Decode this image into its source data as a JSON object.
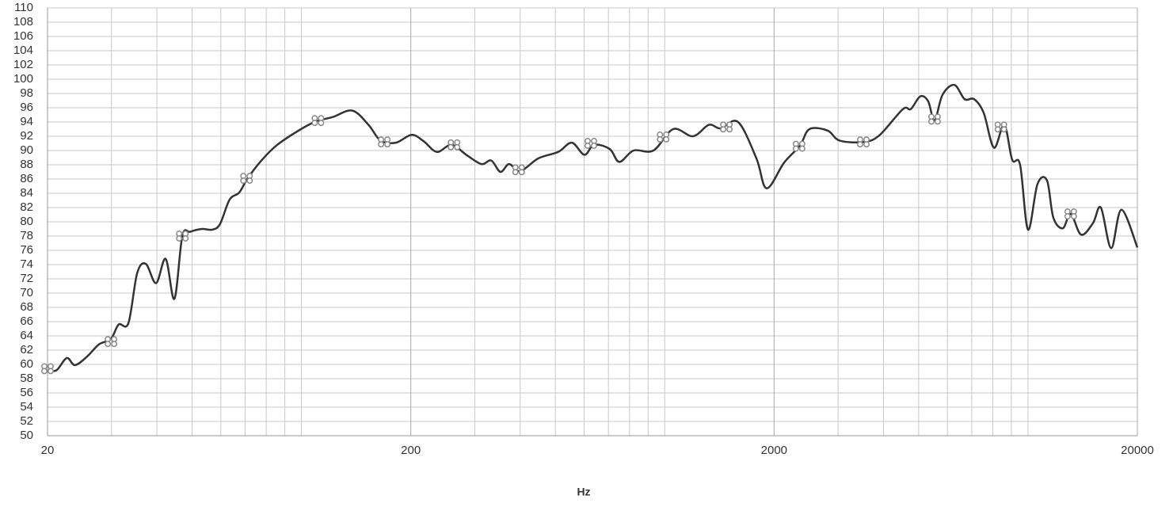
{
  "chart_data": {
    "type": "line",
    "x_label": "Hz",
    "x_scale": "log",
    "grid": true,
    "xlim": [
      20,
      20000
    ],
    "ylim": [
      50,
      110
    ],
    "xticks": [
      20,
      200,
      2000,
      20000
    ],
    "x_minor_ticks": [
      30,
      40,
      50,
      60,
      70,
      80,
      90,
      100,
      300,
      400,
      500,
      600,
      700,
      800,
      900,
      1000,
      3000,
      4000,
      5000,
      6000,
      7000,
      8000,
      9000,
      10000
    ],
    "yticks": [
      50,
      52,
      54,
      56,
      58,
      60,
      62,
      64,
      66,
      68,
      70,
      72,
      74,
      76,
      78,
      80,
      82,
      84,
      86,
      88,
      90,
      92,
      94,
      96,
      98,
      100,
      102,
      104,
      106,
      108,
      110
    ],
    "series": [
      {
        "color": "#333333",
        "x": [
          20,
          21.2,
          22.6,
          23.8,
          25.7,
          27.7,
          29.9,
          31.4,
          33.4,
          35.3,
          37.3,
          39.8,
          42.3,
          44.7,
          47,
          49.4,
          53.2,
          56.8,
          59.7,
          63.4,
          67.4,
          70.9,
          77.6,
          85.8,
          99.7,
          110,
          122,
          138,
          153,
          165,
          182,
          201,
          217,
          236,
          259,
          286,
          313,
          333,
          353,
          373,
          400,
          449,
          509,
          555,
          601,
          639,
          706,
          750,
          821,
          931,
          1055,
          1196,
          1323,
          1426,
          1592,
          1788,
          1908,
          2131,
          2356,
          2503,
          2808,
          3028,
          3521,
          3893,
          4524,
          4756,
          5052,
          5312,
          5530,
          5815,
          6270,
          6693,
          7107,
          7550,
          8058,
          8603,
          9047,
          9511,
          10000,
          10620,
          11280,
          11740,
          12470,
          13110,
          14000,
          15090,
          15870,
          16940,
          18080,
          20000
        ],
        "values": [
          59.1,
          59.2,
          60.9,
          59.9,
          61.1,
          62.8,
          63.6,
          65.6,
          65.8,
          72.8,
          74.1,
          71.4,
          74.8,
          69.2,
          78.0,
          78.6,
          79.0,
          78.9,
          79.7,
          83.1,
          84.1,
          86.0,
          88.6,
          90.8,
          93.0,
          94.1,
          94.7,
          95.6,
          93.6,
          91.4,
          91.1,
          92.2,
          91.3,
          89.8,
          90.8,
          89.3,
          88.1,
          88.6,
          87.0,
          88.1,
          87.1,
          88.9,
          89.8,
          91.1,
          89.4,
          90.8,
          90.2,
          88.4,
          90.0,
          90.0,
          93.0,
          92.0,
          93.6,
          93.1,
          94.0,
          88.9,
          84.7,
          88.3,
          90.7,
          93.0,
          92.8,
          91.4,
          91.2,
          92.1,
          95.8,
          95.8,
          97.6,
          96.9,
          94.2,
          97.8,
          99.2,
          97.2,
          97.2,
          95.3,
          90.4,
          93.6,
          88.7,
          88.0,
          78.9,
          85.3,
          85.8,
          80.6,
          79.1,
          81.1,
          78.2,
          79.8,
          82.0,
          76.3,
          81.7,
          76.4
        ]
      }
    ],
    "markers": {
      "color": "#888888",
      "x": [
        20,
        29.9,
        47,
        70.6,
        111,
        169,
        263,
        396,
        626,
        990,
        1478,
        2343,
        3521,
        5530,
        8421,
        13110
      ],
      "values": [
        59.4,
        63.2,
        78.0,
        86.1,
        94.2,
        91.2,
        90.8,
        87.3,
        91.0,
        91.9,
        93.3,
        90.6,
        91.2,
        94.4,
        93.3,
        81.1
      ]
    }
  }
}
